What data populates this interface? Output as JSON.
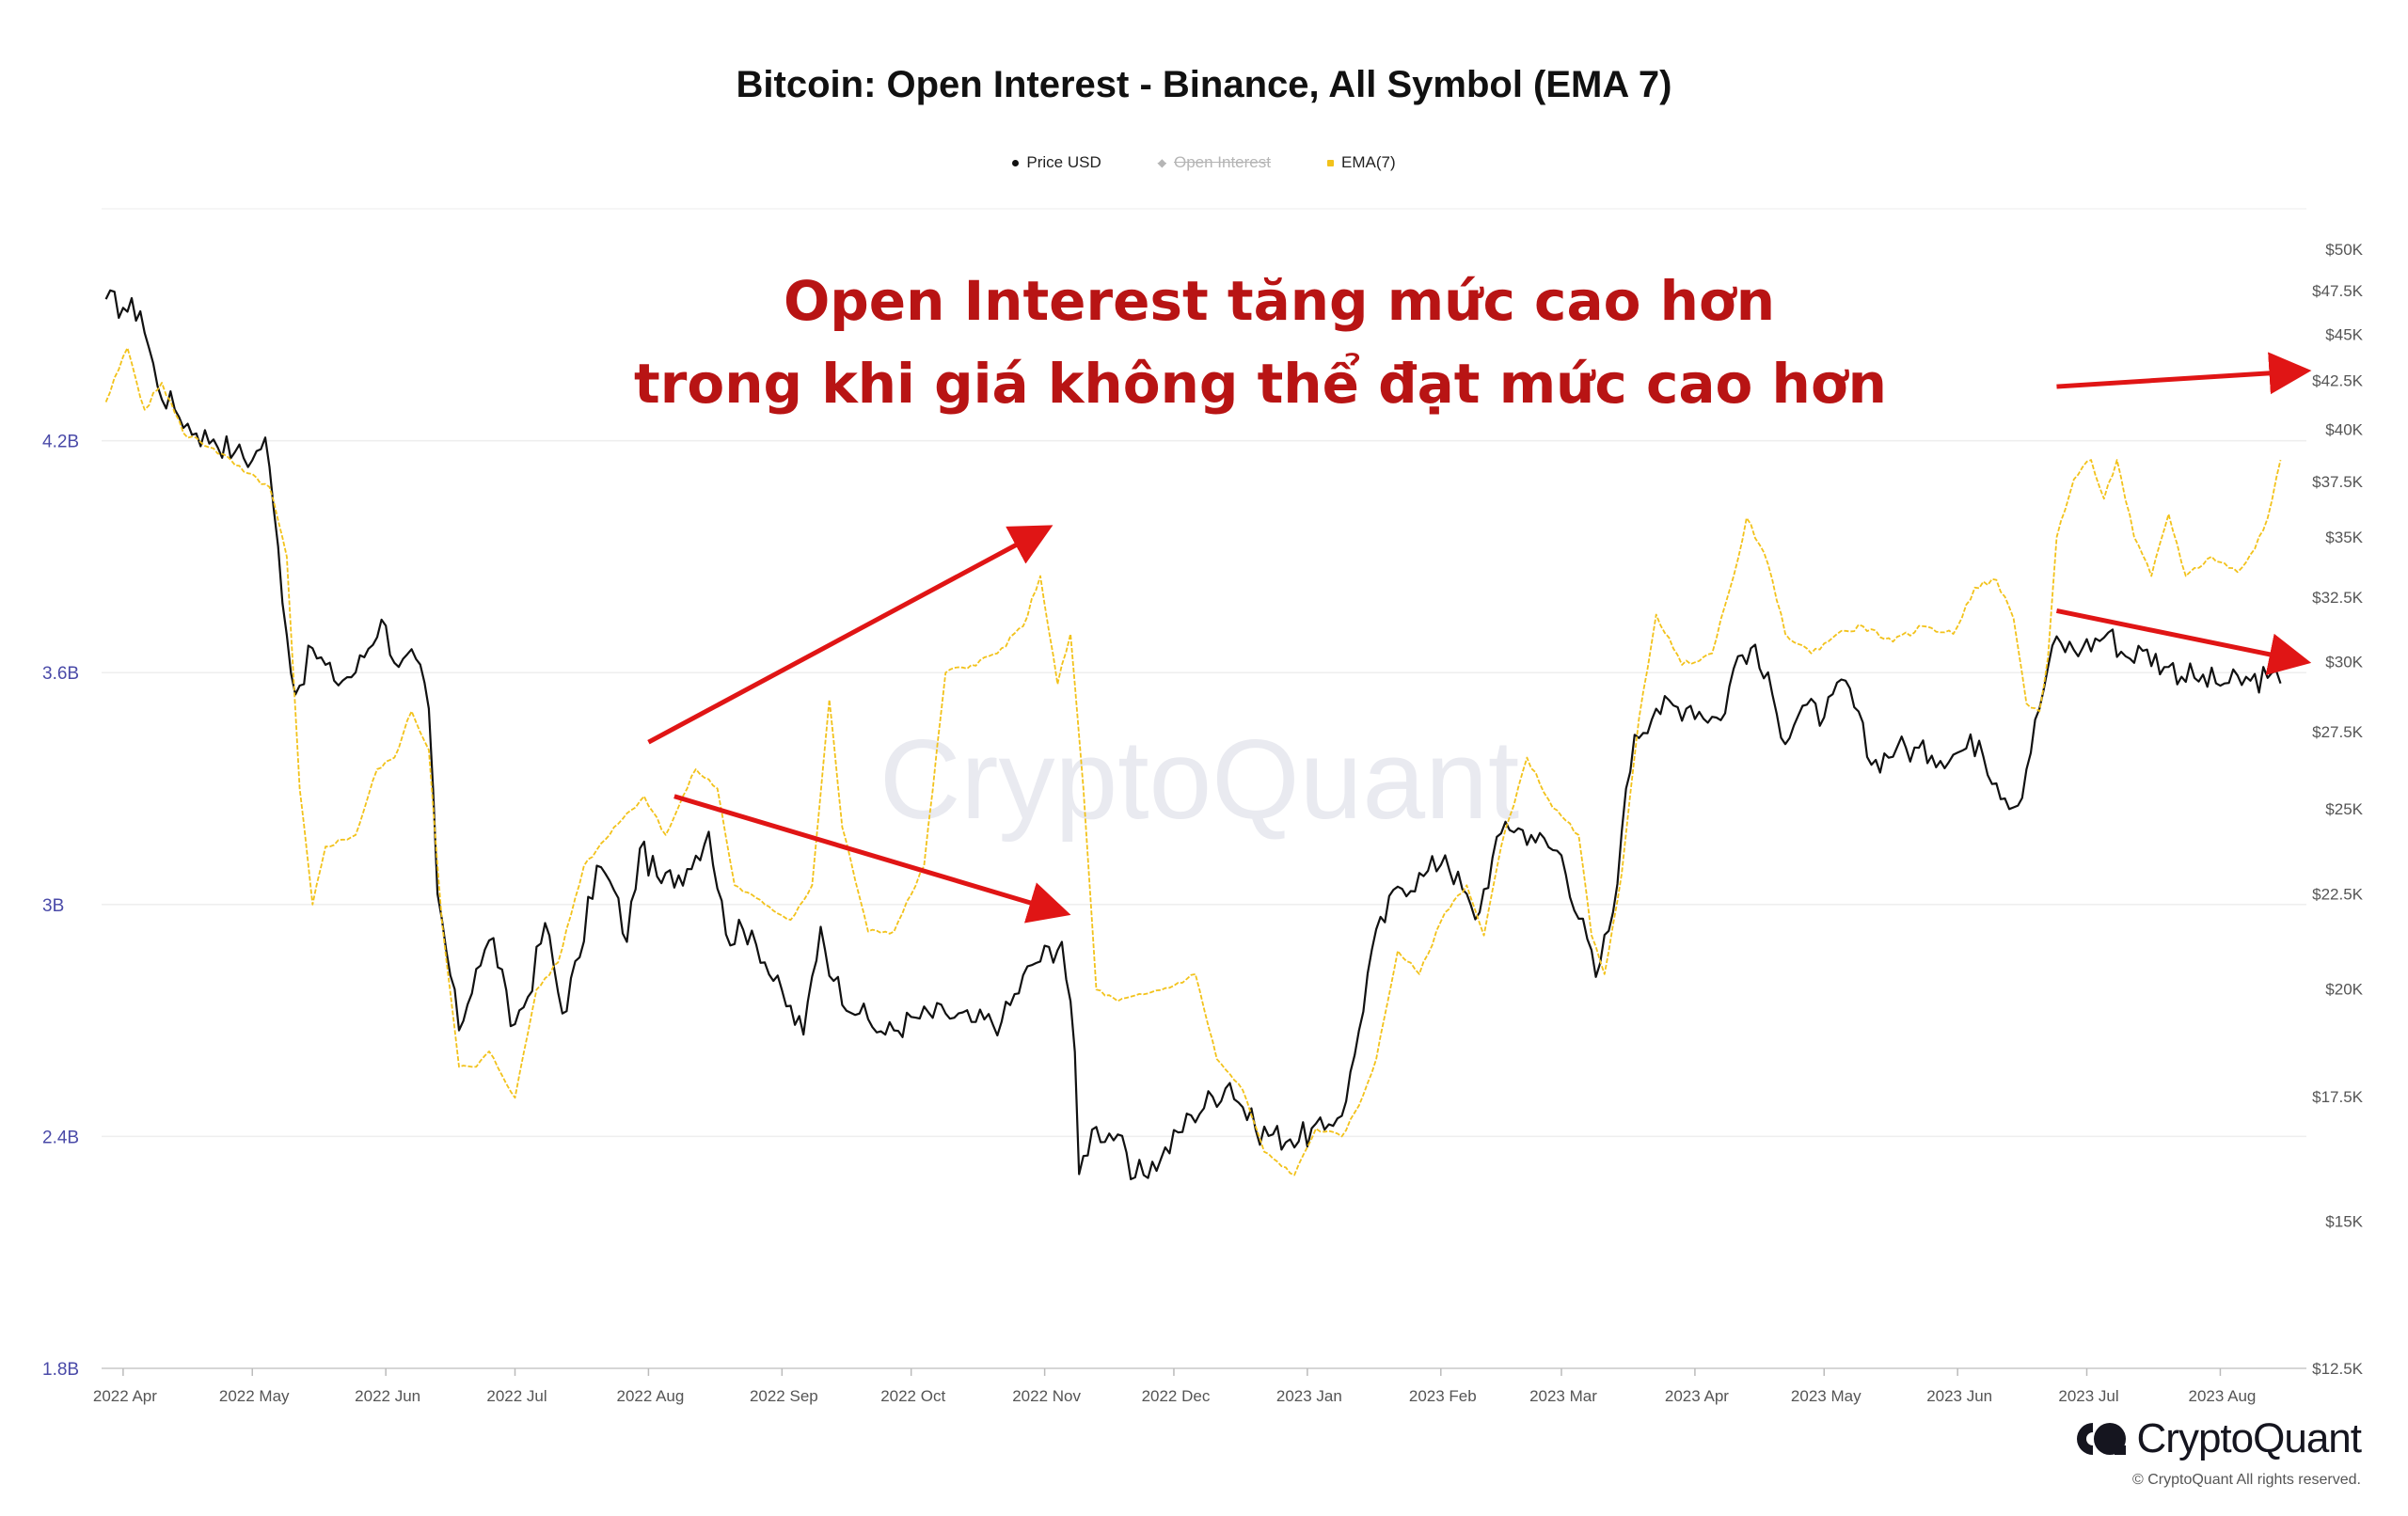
{
  "chart_data": {
    "type": "line",
    "title": "Bitcoin: Open Interest - Binance, All Symbol (EMA 7)",
    "legend": [
      {
        "name": "Price USD",
        "color": "#111111",
        "active": true
      },
      {
        "name": "Open Interest",
        "color": "#b5b5b5",
        "active": false
      },
      {
        "name": "EMA(7)",
        "color": "#f2c21b",
        "active": true
      }
    ],
    "left_axis": {
      "ticks": [
        "1.8B",
        "2.4B",
        "3B",
        "3.6B",
        "4.2B"
      ],
      "range": [
        1.8,
        4.8
      ],
      "unit": "B"
    },
    "right_axis": {
      "ticks": [
        "$12.5K",
        "$15K",
        "$17.5K",
        "$20K",
        "$22.5K",
        "$25K",
        "$27.5K",
        "$30K",
        "$32.5K",
        "$35K",
        "$37.5K",
        "$40K",
        "$42.5K",
        "$45K",
        "$47.5K",
        "$50K"
      ],
      "values": [
        12500,
        15000,
        17500,
        20000,
        22500,
        25000,
        27500,
        30000,
        32500,
        35000,
        37500,
        40000,
        42500,
        45000,
        47500,
        50000
      ],
      "scale": "log"
    },
    "x_axis": {
      "ticks": [
        "2022 Apr",
        "2022 May",
        "2022 Jun",
        "2022 Jul",
        "2022 Aug",
        "2022 Sep",
        "2022 Oct",
        "2022 Nov",
        "2022 Dec",
        "2023 Jan",
        "2023 Feb",
        "2023 Mar",
        "2023 Apr",
        "2023 May",
        "2023 Jun",
        "2023 Jul",
        "2023 Aug"
      ]
    },
    "series": [
      {
        "name": "Price USD",
        "axis": "right",
        "color": "#111111",
        "points": [
          [
            "2022-03-28",
            47000
          ],
          [
            "2022-04-01",
            46500
          ],
          [
            "2022-04-05",
            46300
          ],
          [
            "2022-04-09",
            42200
          ],
          [
            "2022-04-13",
            41000
          ],
          [
            "2022-04-18",
            39800
          ],
          [
            "2022-04-22",
            39500
          ],
          [
            "2022-04-27",
            38900
          ],
          [
            "2022-05-01",
            38500
          ],
          [
            "2022-05-04",
            39600
          ],
          [
            "2022-05-06",
            36200
          ],
          [
            "2022-05-09",
            31000
          ],
          [
            "2022-05-11",
            28800
          ],
          [
            "2022-05-15",
            30500
          ],
          [
            "2022-05-20",
            29300
          ],
          [
            "2022-05-25",
            29600
          ],
          [
            "2022-05-31",
            31600
          ],
          [
            "2022-06-04",
            29800
          ],
          [
            "2022-06-08",
            30100
          ],
          [
            "2022-06-11",
            28300
          ],
          [
            "2022-06-13",
            22500
          ],
          [
            "2022-06-15",
            21000
          ],
          [
            "2022-06-18",
            19000
          ],
          [
            "2022-06-22",
            20500
          ],
          [
            "2022-06-26",
            21300
          ],
          [
            "2022-06-30",
            19100
          ],
          [
            "2022-07-04",
            19800
          ],
          [
            "2022-07-08",
            21700
          ],
          [
            "2022-07-12",
            19400
          ],
          [
            "2022-07-16",
            20800
          ],
          [
            "2022-07-20",
            23300
          ],
          [
            "2022-07-24",
            22600
          ],
          [
            "2022-07-27",
            21200
          ],
          [
            "2022-07-30",
            23800
          ],
          [
            "2022-08-04",
            22800
          ],
          [
            "2022-08-10",
            23200
          ],
          [
            "2022-08-15",
            24300
          ],
          [
            "2022-08-19",
            21400
          ],
          [
            "2022-08-25",
            21500
          ],
          [
            "2022-08-30",
            20200
          ],
          [
            "2022-09-06",
            18900
          ],
          [
            "2022-09-10",
            21600
          ],
          [
            "2022-09-13",
            20200
          ],
          [
            "2022-09-19",
            19400
          ],
          [
            "2022-09-25",
            18900
          ],
          [
            "2022-10-02",
            19300
          ],
          [
            "2022-10-09",
            19400
          ],
          [
            "2022-10-15",
            19200
          ],
          [
            "2022-10-22",
            19200
          ],
          [
            "2022-10-29",
            20600
          ],
          [
            "2022-11-05",
            21200
          ],
          [
            "2022-11-08",
            18500
          ],
          [
            "2022-11-09",
            15900
          ],
          [
            "2022-11-12",
            16800
          ],
          [
            "2022-11-18",
            16700
          ],
          [
            "2022-11-21",
            15800
          ],
          [
            "2022-11-28",
            16200
          ],
          [
            "2022-12-05",
            17100
          ],
          [
            "2022-12-14",
            17800
          ],
          [
            "2022-12-20",
            16800
          ],
          [
            "2022-12-28",
            16600
          ],
          [
            "2023-01-05",
            16800
          ],
          [
            "2023-01-10",
            17400
          ],
          [
            "2023-01-13",
            19000
          ],
          [
            "2023-01-16",
            21000
          ],
          [
            "2023-01-22",
            22700
          ],
          [
            "2023-01-28",
            23000
          ],
          [
            "2023-02-02",
            23600
          ],
          [
            "2023-02-09",
            21800
          ],
          [
            "2023-02-16",
            24600
          ],
          [
            "2023-02-22",
            24200
          ],
          [
            "2023-03-01",
            23600
          ],
          [
            "2023-03-09",
            20300
          ],
          [
            "2023-03-13",
            22000
          ],
          [
            "2023-03-15",
            24300
          ],
          [
            "2023-03-18",
            27400
          ],
          [
            "2023-03-23",
            28300
          ],
          [
            "2023-03-31",
            28400
          ],
          [
            "2023-04-07",
            27900
          ],
          [
            "2023-04-11",
            30200
          ],
          [
            "2023-04-14",
            30500
          ],
          [
            "2023-04-19",
            28800
          ],
          [
            "2023-04-21",
            27300
          ],
          [
            "2023-04-26",
            28400
          ],
          [
            "2023-05-01",
            28000
          ],
          [
            "2023-05-06",
            29300
          ],
          [
            "2023-05-12",
            26400
          ],
          [
            "2023-05-18",
            27000
          ],
          [
            "2023-05-26",
            26700
          ],
          [
            "2023-06-01",
            26800
          ],
          [
            "2023-06-06",
            27200
          ],
          [
            "2023-06-10",
            25800
          ],
          [
            "2023-06-15",
            25100
          ],
          [
            "2023-06-20",
            28300
          ],
          [
            "2023-06-23",
            30600
          ],
          [
            "2023-06-30",
            30500
          ],
          [
            "2023-07-06",
            31100
          ],
          [
            "2023-07-10",
            30200
          ],
          [
            "2023-07-14",
            30400
          ],
          [
            "2023-07-20",
            29800
          ],
          [
            "2023-07-26",
            29400
          ],
          [
            "2023-08-02",
            29200
          ],
          [
            "2023-08-08",
            29300
          ],
          [
            "2023-08-12",
            29400
          ],
          [
            "2023-08-15",
            29200
          ]
        ]
      },
      {
        "name": "EMA(7)",
        "axis": "left",
        "color": "#f2c21b",
        "points": [
          [
            "2022-03-28",
            4.3
          ],
          [
            "2022-04-02",
            4.44
          ],
          [
            "2022-04-06",
            4.28
          ],
          [
            "2022-04-10",
            4.35
          ],
          [
            "2022-04-15",
            4.22
          ],
          [
            "2022-04-22",
            4.18
          ],
          [
            "2022-04-29",
            4.12
          ],
          [
            "2022-05-05",
            4.08
          ],
          [
            "2022-05-09",
            3.9
          ],
          [
            "2022-05-12",
            3.3
          ],
          [
            "2022-05-15",
            3.0
          ],
          [
            "2022-05-18",
            3.15
          ],
          [
            "2022-05-25",
            3.18
          ],
          [
            "2022-05-30",
            3.35
          ],
          [
            "2022-06-03",
            3.38
          ],
          [
            "2022-06-07",
            3.5
          ],
          [
            "2022-06-11",
            3.4
          ],
          [
            "2022-06-14",
            2.96
          ],
          [
            "2022-06-18",
            2.58
          ],
          [
            "2022-06-22",
            2.58
          ],
          [
            "2022-06-25",
            2.62
          ],
          [
            "2022-07-01",
            2.5
          ],
          [
            "2022-07-06",
            2.78
          ],
          [
            "2022-07-11",
            2.85
          ],
          [
            "2022-07-17",
            3.1
          ],
          [
            "2022-07-24",
            3.2
          ],
          [
            "2022-07-31",
            3.28
          ],
          [
            "2022-08-05",
            3.18
          ],
          [
            "2022-08-12",
            3.35
          ],
          [
            "2022-08-17",
            3.3
          ],
          [
            "2022-08-21",
            3.05
          ],
          [
            "2022-08-28",
            3.0
          ],
          [
            "2022-09-03",
            2.96
          ],
          [
            "2022-09-08",
            3.05
          ],
          [
            "2022-09-12",
            3.53
          ],
          [
            "2022-09-15",
            3.2
          ],
          [
            "2022-09-21",
            2.93
          ],
          [
            "2022-09-27",
            2.93
          ],
          [
            "2022-10-04",
            3.1
          ],
          [
            "2022-10-09",
            3.6
          ],
          [
            "2022-10-15",
            3.62
          ],
          [
            "2022-10-21",
            3.65
          ],
          [
            "2022-10-27",
            3.72
          ],
          [
            "2022-10-31",
            3.85
          ],
          [
            "2022-11-04",
            3.57
          ],
          [
            "2022-11-07",
            3.7
          ],
          [
            "2022-11-10",
            3.3
          ],
          [
            "2022-11-13",
            2.78
          ],
          [
            "2022-11-18",
            2.75
          ],
          [
            "2022-11-25",
            2.77
          ],
          [
            "2022-12-01",
            2.79
          ],
          [
            "2022-12-06",
            2.82
          ],
          [
            "2022-12-11",
            2.6
          ],
          [
            "2022-12-17",
            2.52
          ],
          [
            "2022-12-22",
            2.36
          ],
          [
            "2022-12-29",
            2.3
          ],
          [
            "2023-01-03",
            2.42
          ],
          [
            "2023-01-09",
            2.4
          ],
          [
            "2023-01-13",
            2.48
          ],
          [
            "2023-01-17",
            2.6
          ],
          [
            "2023-01-22",
            2.88
          ],
          [
            "2023-01-27",
            2.82
          ],
          [
            "2023-02-02",
            2.98
          ],
          [
            "2023-02-07",
            3.05
          ],
          [
            "2023-02-11",
            2.92
          ],
          [
            "2023-02-15",
            3.15
          ],
          [
            "2023-02-21",
            3.38
          ],
          [
            "2023-02-27",
            3.25
          ],
          [
            "2023-03-05",
            3.18
          ],
          [
            "2023-03-08",
            2.92
          ],
          [
            "2023-03-11",
            2.82
          ],
          [
            "2023-03-15",
            3.08
          ],
          [
            "2023-03-19",
            3.48
          ],
          [
            "2023-03-23",
            3.75
          ],
          [
            "2023-03-29",
            3.62
          ],
          [
            "2023-04-05",
            3.65
          ],
          [
            "2023-04-10",
            3.85
          ],
          [
            "2023-04-13",
            4.0
          ],
          [
            "2023-04-18",
            3.88
          ],
          [
            "2023-04-22",
            3.7
          ],
          [
            "2023-04-28",
            3.65
          ],
          [
            "2023-05-04",
            3.7
          ],
          [
            "2023-05-10",
            3.72
          ],
          [
            "2023-05-17",
            3.68
          ],
          [
            "2023-05-24",
            3.72
          ],
          [
            "2023-05-31",
            3.7
          ],
          [
            "2023-06-05",
            3.82
          ],
          [
            "2023-06-10",
            3.84
          ],
          [
            "2023-06-14",
            3.74
          ],
          [
            "2023-06-17",
            3.52
          ],
          [
            "2023-06-20",
            3.5
          ],
          [
            "2023-06-22",
            3.64
          ],
          [
            "2023-06-24",
            3.95
          ],
          [
            "2023-06-28",
            4.1
          ],
          [
            "2023-07-02",
            4.15
          ],
          [
            "2023-07-05",
            4.05
          ],
          [
            "2023-07-08",
            4.15
          ],
          [
            "2023-07-12",
            3.95
          ],
          [
            "2023-07-16",
            3.85
          ],
          [
            "2023-07-20",
            4.01
          ],
          [
            "2023-07-24",
            3.85
          ],
          [
            "2023-07-30",
            3.9
          ],
          [
            "2023-08-05",
            3.86
          ],
          [
            "2023-08-09",
            3.92
          ],
          [
            "2023-08-12",
            4.0
          ],
          [
            "2023-08-15",
            4.15
          ]
        ]
      }
    ],
    "annotations": {
      "headline": [
        "Open Interest tăng mức cao hơn",
        "trong khi giá không thể đạt mức cao hơn"
      ],
      "arrows": [
        {
          "series": "EMA(7)",
          "direction": "up",
          "from": [
            "2022-08-01",
            3.42
          ],
          "to": [
            "2022-11-01",
            3.97
          ]
        },
        {
          "series": "Price USD",
          "direction": "down",
          "from": [
            "2022-08-07",
            3.28
          ],
          "to": [
            "2022-11-05",
            2.98
          ]
        },
        {
          "series": "EMA(7)",
          "direction": "up",
          "from": [
            "2023-06-24",
            4.34
          ],
          "to": [
            "2023-08-20",
            4.38
          ]
        },
        {
          "series": "Price USD",
          "direction": "down",
          "from": [
            "2023-06-24",
            3.76
          ],
          "to": [
            "2023-08-20",
            3.63
          ]
        }
      ]
    },
    "watermark": "CryptoQuant"
  },
  "footer": {
    "brand": "CryptoQuant",
    "copyright": "© CryptoQuant All rights reserved."
  }
}
